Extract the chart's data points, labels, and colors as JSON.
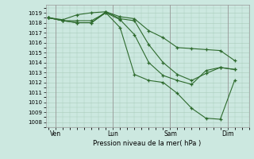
{
  "background_color": "#cce8e0",
  "grid_color": "#aaccbb",
  "line_color": "#2d6a2d",
  "marker_color": "#2d6a2d",
  "ylabel_text": "Pression niveau de la mer( hPa )",
  "ylim": [
    1007.5,
    1019.8
  ],
  "yticks": [
    1008,
    1009,
    1010,
    1011,
    1012,
    1013,
    1014,
    1015,
    1016,
    1017,
    1018,
    1019
  ],
  "xtick_labels": [
    "Ven",
    "Lun",
    "Sam",
    "Dim"
  ],
  "xtick_positions": [
    0.5,
    4.5,
    8.5,
    12.5
  ],
  "xlim": [
    -0.2,
    14.0
  ],
  "series1_x": [
    0,
    1,
    2,
    3,
    4,
    5,
    6,
    7,
    8,
    9,
    10,
    11,
    12,
    13
  ],
  "series1": [
    1018.5,
    1018.3,
    1018.8,
    1019.0,
    1019.1,
    1018.6,
    1018.4,
    1017.2,
    1016.5,
    1015.5,
    1015.4,
    1015.3,
    1015.2,
    1014.2
  ],
  "series2_x": [
    0,
    1,
    2,
    3,
    4,
    5,
    6,
    7,
    8,
    9,
    10,
    11,
    12,
    13
  ],
  "series2": [
    1018.5,
    1018.2,
    1018.0,
    1018.0,
    1019.1,
    1018.4,
    1018.2,
    1015.8,
    1014.0,
    1012.8,
    1012.2,
    1012.9,
    1013.5,
    1013.3
  ],
  "series3_x": [
    0,
    1,
    2,
    3,
    4,
    5,
    6,
    7,
    8,
    9,
    10,
    11,
    12,
    13
  ],
  "series3": [
    1018.5,
    1018.2,
    1018.0,
    1018.0,
    1019.0,
    1018.3,
    1016.8,
    1014.0,
    1012.7,
    1012.2,
    1011.8,
    1013.2,
    1013.5,
    1013.3
  ],
  "series4_x": [
    0,
    1,
    2,
    3,
    4,
    5,
    6,
    7,
    8,
    9,
    10,
    11,
    12,
    13
  ],
  "series4": [
    1018.5,
    1018.2,
    1018.2,
    1018.2,
    1019.0,
    1017.5,
    1012.8,
    1012.2,
    1012.0,
    1010.9,
    1009.4,
    1008.4,
    1008.3,
    1012.2
  ]
}
